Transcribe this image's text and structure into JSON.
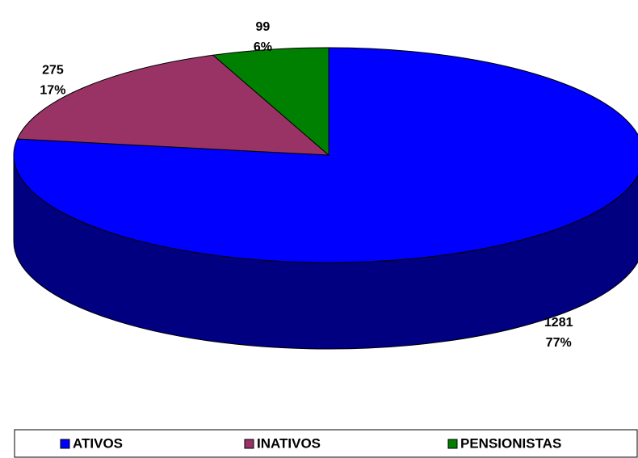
{
  "chart_data": {
    "type": "pie3d",
    "categories": [
      "ATIVOS",
      "INATIVOS",
      "PENSIONISTAS"
    ],
    "values": [
      1281,
      275,
      99
    ],
    "percent_labels": [
      "77%",
      "17%",
      "6%"
    ],
    "colors": [
      "#0000ff",
      "#993366",
      "#008000"
    ],
    "legend": "bottom"
  }
}
